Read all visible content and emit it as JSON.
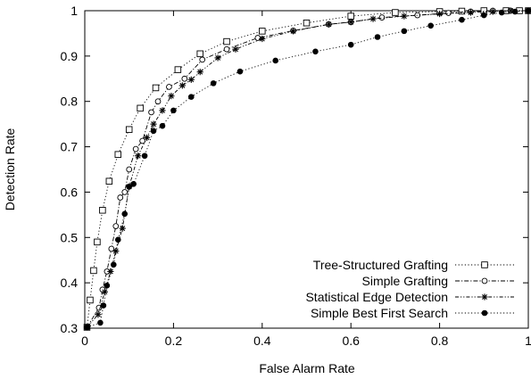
{
  "chart_data": {
    "type": "line",
    "title": "",
    "xlabel": "False Alarm Rate",
    "ylabel": "Detection Rate",
    "xlim": [
      0,
      1
    ],
    "ylim": [
      0.3,
      1
    ],
    "xticks": [
      0,
      0.2,
      0.4,
      0.6,
      0.8,
      1
    ],
    "xtick_labels": [
      "0",
      "0.2",
      "0.4",
      "0.6",
      "0.8",
      "1"
    ],
    "yticks": [
      0.3,
      0.4,
      0.5,
      0.6,
      0.7,
      0.8,
      0.9,
      1
    ],
    "ytick_labels": [
      "0.3",
      "0.4",
      "0.5",
      "0.6",
      "0.7",
      "0.8",
      "0.9",
      "1"
    ],
    "grid": false,
    "legend_position": "bottom-right",
    "series": [
      {
        "name": "Tree-Structured Grafting",
        "marker": "square",
        "line_style": "dotted",
        "x": [
          0.005,
          0.012,
          0.02,
          0.028,
          0.04,
          0.055,
          0.075,
          0.1,
          0.125,
          0.16,
          0.21,
          0.26,
          0.32,
          0.4,
          0.5,
          0.6,
          0.7,
          0.8,
          0.85,
          0.9,
          0.95,
          0.98,
          1.0
        ],
        "y": [
          0.302,
          0.362,
          0.427,
          0.49,
          0.56,
          0.624,
          0.683,
          0.738,
          0.785,
          0.83,
          0.87,
          0.905,
          0.932,
          0.955,
          0.973,
          0.988,
          0.996,
          0.998,
          0.999,
          1.0,
          1.0,
          1.0,
          1.0
        ]
      },
      {
        "name": "Simple Grafting",
        "marker": "open-circle",
        "line_style": "dash-dot",
        "x": [
          0.005,
          0.032,
          0.04,
          0.05,
          0.06,
          0.07,
          0.08,
          0.09,
          0.1,
          0.115,
          0.13,
          0.15,
          0.165,
          0.19,
          0.225,
          0.265,
          0.32,
          0.39,
          0.47,
          0.55,
          0.6,
          0.67,
          0.75,
          0.82,
          0.87,
          0.92,
          0.96,
          1.0
        ],
        "y": [
          0.302,
          0.345,
          0.385,
          0.425,
          0.475,
          0.525,
          0.588,
          0.6,
          0.65,
          0.695,
          0.713,
          0.776,
          0.8,
          0.832,
          0.85,
          0.892,
          0.915,
          0.94,
          0.956,
          0.97,
          0.975,
          0.985,
          0.99,
          0.995,
          0.998,
          1.0,
          1.0,
          1.0
        ]
      },
      {
        "name": "Statistical Edge Detection",
        "marker": "asterisk",
        "line_style": "dash-dot-dot",
        "x": [
          0.005,
          0.03,
          0.045,
          0.058,
          0.07,
          0.085,
          0.1,
          0.12,
          0.14,
          0.155,
          0.175,
          0.195,
          0.22,
          0.24,
          0.26,
          0.3,
          0.34,
          0.4,
          0.47,
          0.55,
          0.6,
          0.65,
          0.72,
          0.8,
          0.87,
          0.92,
          0.96,
          1.0
        ],
        "y": [
          0.302,
          0.33,
          0.38,
          0.425,
          0.47,
          0.52,
          0.612,
          0.68,
          0.72,
          0.75,
          0.78,
          0.812,
          0.835,
          0.848,
          0.865,
          0.896,
          0.915,
          0.938,
          0.955,
          0.97,
          0.975,
          0.982,
          0.988,
          0.993,
          0.996,
          0.998,
          1.0,
          1.0
        ]
      },
      {
        "name": "Simple Best First Search",
        "marker": "filled-circle",
        "line_style": "dotted",
        "x": [
          0.005,
          0.035,
          0.042,
          0.05,
          0.065,
          0.075,
          0.09,
          0.1,
          0.11,
          0.135,
          0.155,
          0.175,
          0.2,
          0.24,
          0.29,
          0.35,
          0.43,
          0.52,
          0.6,
          0.66,
          0.72,
          0.78,
          0.85,
          0.9,
          0.94,
          0.97,
          1.0
        ],
        "y": [
          0.302,
          0.312,
          0.35,
          0.394,
          0.44,
          0.495,
          0.552,
          0.612,
          0.618,
          0.68,
          0.735,
          0.746,
          0.78,
          0.81,
          0.84,
          0.866,
          0.89,
          0.91,
          0.925,
          0.942,
          0.955,
          0.967,
          0.98,
          0.99,
          0.996,
          0.998,
          1.0
        ]
      }
    ]
  }
}
